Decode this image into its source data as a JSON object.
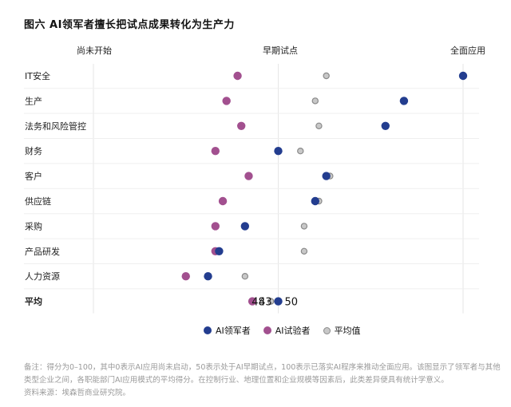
{
  "title": "图六  AI领军者擅长把试点成果转化为生产力",
  "scale_labels": {
    "left": "尚未开始",
    "middle": "早期试点",
    "right": "全面应用"
  },
  "legend": [
    {
      "key": "leader",
      "label": "AI领军者",
      "color": "#233d8f"
    },
    {
      "key": "pilot",
      "label": "AI试验者",
      "color": "#a2508f"
    },
    {
      "key": "avg",
      "label": "平均值",
      "color": "#c8c8c8"
    }
  ],
  "note": "备注：得分为0–100，其中0表示AI应用尚未启动，50表示处于AI早期试点，100表示已落实AI程序来推动全面应用。该图显示了领军者与其他类型企业之间，各职能部门AI应用模式的平均得分。在控制行业、地理位置和企业规模等因素后，此类差异便具有统计学意义。",
  "source": "资料来源：埃森哲商业研究院。",
  "chart_data": {
    "type": "scatter",
    "title": "图六  AI领军者擅长把试点成果转化为生产力",
    "xlim": [
      0,
      100
    ],
    "x_tick_labels": [
      "尚未开始",
      "早期试点",
      "全面应用"
    ],
    "categories": [
      "IT安全",
      "生产",
      "法务和风险管控",
      "财务",
      "客户",
      "供应链",
      "采购",
      "产品研发",
      "人力资源",
      "平均"
    ],
    "series": [
      {
        "name": "AI领军者",
        "key": "leader",
        "color": "#233d8f",
        "values": [
          100,
          84,
          79,
          50,
          63,
          60,
          41,
          34,
          31,
          50
        ]
      },
      {
        "name": "AI试验者",
        "key": "pilot",
        "color": "#a2508f",
        "values": [
          39,
          36,
          40,
          33,
          42,
          35,
          33,
          33,
          25,
          43
        ]
      },
      {
        "name": "平均值",
        "key": "avg",
        "color": "#c8c8c8",
        "values": [
          63,
          60,
          61,
          56,
          64,
          61,
          57,
          57,
          41,
          48
        ]
      }
    ],
    "average_labels": {
      "pilot": "43",
      "avg": "48",
      "leader": "50"
    },
    "grid": true,
    "legend_position": "bottom"
  }
}
